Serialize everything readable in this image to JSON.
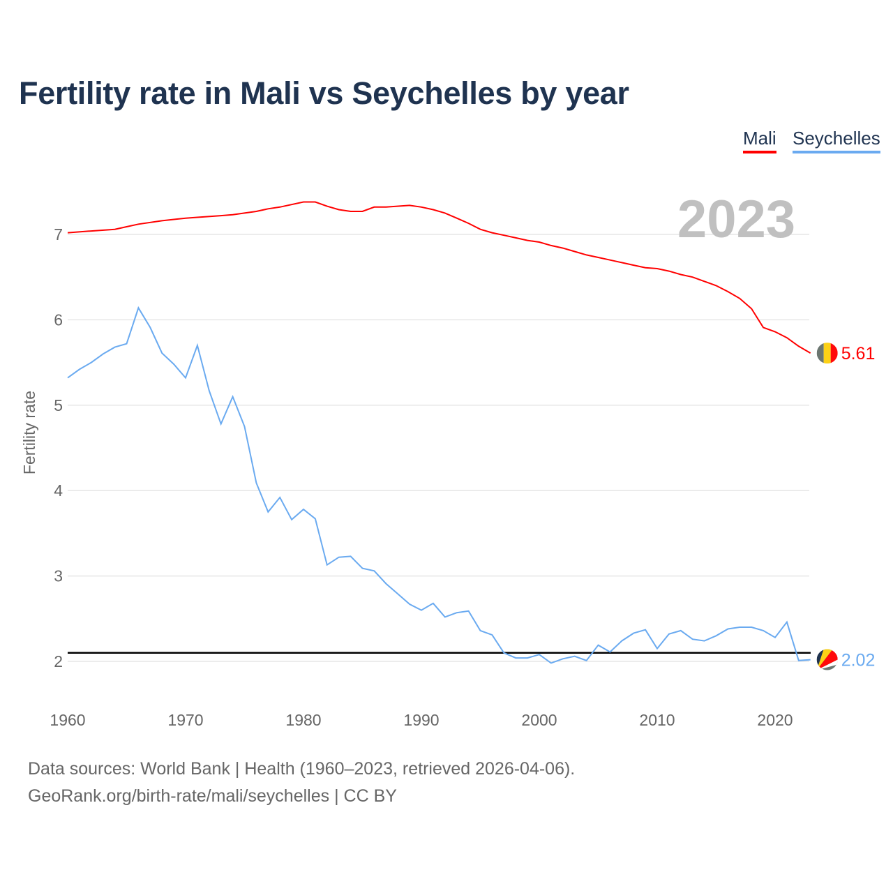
{
  "chart_data": {
    "type": "line",
    "title": "Fertility rate in Mali vs Seychelles by year",
    "xlabel": "",
    "ylabel": "Fertility rate",
    "xlim": [
      1960,
      2023
    ],
    "ylim": [
      1.5,
      7.5
    ],
    "x_ticks": [
      1960,
      1970,
      1980,
      1990,
      2000,
      2010,
      2020
    ],
    "y_ticks": [
      2,
      3,
      4,
      5,
      6,
      7
    ],
    "grid": true,
    "legend_position": "top-right",
    "year_label": "2023",
    "reference_line": {
      "value": 2.1,
      "color": "#000000"
    },
    "series": [
      {
        "name": "Mali",
        "color": "#ff0000",
        "end_label": "5.61",
        "points": [
          [
            1960,
            7.02
          ],
          [
            1962,
            7.04
          ],
          [
            1964,
            7.06
          ],
          [
            1965,
            7.09
          ],
          [
            1966,
            7.12
          ],
          [
            1968,
            7.16
          ],
          [
            1970,
            7.19
          ],
          [
            1971,
            7.2
          ],
          [
            1973,
            7.22
          ],
          [
            1974,
            7.23
          ],
          [
            1976,
            7.27
          ],
          [
            1977,
            7.3
          ],
          [
            1978,
            7.32
          ],
          [
            1980,
            7.38
          ],
          [
            1981,
            7.38
          ],
          [
            1982,
            7.33
          ],
          [
            1983,
            7.29
          ],
          [
            1984,
            7.27
          ],
          [
            1985,
            7.27
          ],
          [
            1986,
            7.32
          ],
          [
            1987,
            7.32
          ],
          [
            1989,
            7.34
          ],
          [
            1990,
            7.32
          ],
          [
            1991,
            7.29
          ],
          [
            1992,
            7.25
          ],
          [
            1993,
            7.19
          ],
          [
            1994,
            7.13
          ],
          [
            1995,
            7.06
          ],
          [
            1996,
            7.02
          ],
          [
            1997,
            6.99
          ],
          [
            1998,
            6.96
          ],
          [
            1999,
            6.93
          ],
          [
            2000,
            6.91
          ],
          [
            2001,
            6.87
          ],
          [
            2002,
            6.84
          ],
          [
            2003,
            6.8
          ],
          [
            2004,
            6.76
          ],
          [
            2005,
            6.73
          ],
          [
            2006,
            6.7
          ],
          [
            2007,
            6.67
          ],
          [
            2008,
            6.64
          ],
          [
            2009,
            6.61
          ],
          [
            2010,
            6.6
          ],
          [
            2011,
            6.57
          ],
          [
            2012,
            6.53
          ],
          [
            2013,
            6.5
          ],
          [
            2014,
            6.45
          ],
          [
            2015,
            6.4
          ],
          [
            2016,
            6.33
          ],
          [
            2017,
            6.25
          ],
          [
            2018,
            6.13
          ],
          [
            2019,
            5.91
          ],
          [
            2020,
            5.86
          ],
          [
            2021,
            5.79
          ],
          [
            2022,
            5.69
          ],
          [
            2023,
            5.61
          ]
        ]
      },
      {
        "name": "Seychelles",
        "color": "#6aaaf0",
        "end_label": "2.02",
        "points": [
          [
            1960,
            5.32
          ],
          [
            1961,
            5.42
          ],
          [
            1962,
            5.5
          ],
          [
            1963,
            5.6
          ],
          [
            1964,
            5.68
          ],
          [
            1965,
            5.72
          ],
          [
            1966,
            6.14
          ],
          [
            1967,
            5.91
          ],
          [
            1968,
            5.61
          ],
          [
            1969,
            5.48
          ],
          [
            1970,
            5.32
          ],
          [
            1971,
            5.7
          ],
          [
            1972,
            5.17
          ],
          [
            1973,
            4.78
          ],
          [
            1974,
            5.1
          ],
          [
            1975,
            4.75
          ],
          [
            1976,
            4.09
          ],
          [
            1977,
            3.75
          ],
          [
            1978,
            3.92
          ],
          [
            1979,
            3.66
          ],
          [
            1980,
            3.78
          ],
          [
            1981,
            3.67
          ],
          [
            1982,
            3.13
          ],
          [
            1983,
            3.22
          ],
          [
            1984,
            3.23
          ],
          [
            1985,
            3.09
          ],
          [
            1986,
            3.06
          ],
          [
            1987,
            2.91
          ],
          [
            1988,
            2.79
          ],
          [
            1989,
            2.67
          ],
          [
            1990,
            2.6
          ],
          [
            1991,
            2.68
          ],
          [
            1992,
            2.52
          ],
          [
            1993,
            2.57
          ],
          [
            1994,
            2.59
          ],
          [
            1995,
            2.36
          ],
          [
            1996,
            2.31
          ],
          [
            1997,
            2.1
          ],
          [
            1998,
            2.04
          ],
          [
            1999,
            2.04
          ],
          [
            2000,
            2.08
          ],
          [
            2001,
            1.98
          ],
          [
            2002,
            2.03
          ],
          [
            2003,
            2.06
          ],
          [
            2004,
            2.01
          ],
          [
            2005,
            2.19
          ],
          [
            2006,
            2.11
          ],
          [
            2007,
            2.24
          ],
          [
            2008,
            2.33
          ],
          [
            2009,
            2.37
          ],
          [
            2010,
            2.15
          ],
          [
            2011,
            2.32
          ],
          [
            2012,
            2.36
          ],
          [
            2013,
            2.26
          ],
          [
            2014,
            2.24
          ],
          [
            2015,
            2.3
          ],
          [
            2016,
            2.38
          ],
          [
            2017,
            2.4
          ],
          [
            2018,
            2.4
          ],
          [
            2019,
            2.36
          ],
          [
            2020,
            2.28
          ],
          [
            2021,
            2.46
          ],
          [
            2022,
            2.01
          ],
          [
            2023,
            2.02
          ]
        ]
      }
    ]
  },
  "footer": {
    "sources": "Data sources: World Bank | Health (1960–2023, retrieved 2026-04-06).",
    "credit": "GeoRank.org/birth-rate/mali/seychelles | CC BY"
  }
}
